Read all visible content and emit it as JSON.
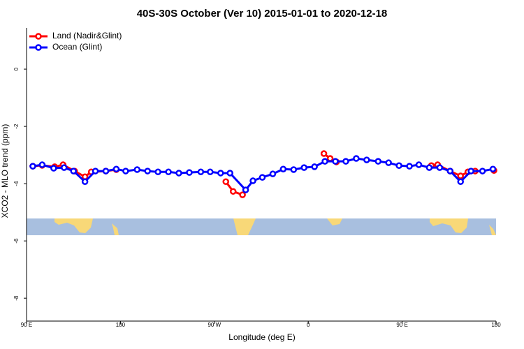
{
  "chart_data": {
    "type": "line",
    "title": "40S-30S October (Ver 10)   2015-01-01 to 2020-12-18",
    "x_label": "Longitude (deg E)",
    "y_label": "XCO2 - MLO trend (ppm)",
    "xlim": [
      90,
      540
    ],
    "xticks": [
      {
        "value": 90,
        "label": "90 E"
      },
      180,
      {
        "value": 270,
        "label": "90 W"
      },
      {
        "value": 360,
        "label": "0"
      },
      {
        "value": 450,
        "label": "90 E"
      },
      {
        "value": 540,
        "label": "180"
      }
    ],
    "ylim": [
      -8.8,
      1.44
    ],
    "yticks": [
      0,
      -2,
      -4,
      -6,
      -8
    ],
    "legend": "top-left",
    "series": [
      {
        "name": "Land (Nadir&Glint)",
        "color": "#ff0000",
        "x": [
          96,
          105,
          117,
          125,
          136,
          146,
          152,
          166,
          176,
          null,
          281,
          288,
          297,
          null,
          375,
          381,
          387,
          null,
          478,
          484,
          496,
          506,
          513,
          520,
          null,
          538
        ],
        "values": [
          -3.39,
          -3.36,
          -3.41,
          -3.34,
          -3.56,
          -3.76,
          -3.59,
          -3.56,
          -3.51,
          null,
          -3.93,
          -4.27,
          -4.39,
          null,
          -2.95,
          -3.12,
          -3.24,
          null,
          -3.37,
          -3.34,
          -3.56,
          -3.73,
          -3.59,
          -3.56,
          null,
          -3.54
        ]
      },
      {
        "name": "Ocean (Glint)",
        "color": "#0000ff",
        "x": [
          96,
          105,
          116,
          126,
          135,
          146,
          156,
          166,
          176,
          185,
          196,
          206,
          216,
          226,
          236,
          246,
          257,
          266,
          276,
          285,
          300,
          307,
          316,
          326,
          336,
          346,
          356,
          366,
          376,
          386,
          396,
          406,
          416,
          427,
          437,
          447,
          457,
          466,
          476,
          486,
          496,
          506,
          516,
          527,
          537
        ],
        "values": [
          -3.39,
          -3.34,
          -3.46,
          -3.44,
          -3.56,
          -3.93,
          -3.56,
          -3.56,
          -3.49,
          -3.56,
          -3.51,
          -3.56,
          -3.59,
          -3.59,
          -3.63,
          -3.61,
          -3.59,
          -3.59,
          -3.63,
          -3.63,
          -4.22,
          -3.9,
          -3.78,
          -3.66,
          -3.49,
          -3.51,
          -3.44,
          -3.41,
          -3.22,
          -3.22,
          -3.22,
          -3.12,
          -3.17,
          -3.22,
          -3.27,
          -3.37,
          -3.39,
          -3.34,
          -3.44,
          -3.44,
          -3.56,
          -3.93,
          -3.56,
          -3.56,
          -3.49
        ]
      }
    ]
  }
}
